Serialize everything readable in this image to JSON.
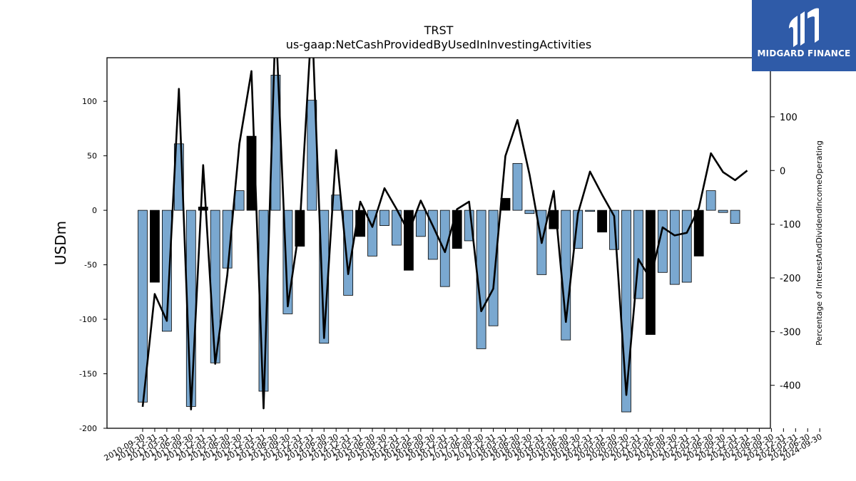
{
  "chart_data": {
    "type": "bar",
    "title": "TRST",
    "subtitle": "us-gaap:NetCashProvidedByUsedInInvestingActivities",
    "ylabel": "USDm",
    "ylabel_right": "Percentage of InterestAndDividendIncomeOperating",
    "ylim": [
      -200,
      140
    ],
    "ylim_right": [
      -480,
      210
    ],
    "yticks": [
      -200,
      -150,
      -100,
      -50,
      0,
      50,
      100
    ],
    "yticks_right": [
      -400,
      -300,
      -200,
      -100,
      0,
      100
    ],
    "categories": [
      "2010-09-30",
      "2010-12-31",
      "2011-03-31",
      "2011-06-30",
      "2011-09-30",
      "2011-12-31",
      "2012-03-31",
      "2012-06-30",
      "2012-09-30",
      "2012-12-31",
      "2013-03-31",
      "2013-06-30",
      "2013-09-30",
      "2013-12-31",
      "2014-03-31",
      "2014-06-30",
      "2014-09-30",
      "2014-12-31",
      "2015-03-31",
      "2015-06-30",
      "2015-09-30",
      "2015-12-31",
      "2016-03-31",
      "2016-06-30",
      "2016-09-30",
      "2016-12-31",
      "2017-03-31",
      "2017-06-30",
      "2017-09-30",
      "2017-12-31",
      "2018-03-31",
      "2018-06-30",
      "2018-09-30",
      "2018-12-31",
      "2019-03-31",
      "2019-06-30",
      "2019-09-30",
      "2019-12-31",
      "2020-03-31",
      "2020-06-30",
      "2020-09-30",
      "2020-12-31",
      "2021-03-31",
      "2021-06-30",
      "2021-09-30",
      "2021-12-31",
      "2022-03-31",
      "2022-06-30",
      "2022-09-30",
      "2022-12-31",
      "2023-03-31"
    ],
    "tick_labels": [
      "2010-09-30",
      "2010-12-31",
      "2011-03-31",
      "2011-06-30",
      "2011-09-30",
      "2011-12-31",
      "2012-03-31",
      "2012-06-30",
      "2012-09-30",
      "2012-12-31",
      "2013-03-31",
      "2013-06-30",
      "2013-09-30",
      "2013-12-31",
      "2014-03-31",
      "2014-06-30",
      "2014-09-30",
      "2014-12-31",
      "2015-03-31",
      "2015-06-30",
      "2015-09-30",
      "2015-12-31",
      "2016-03-31",
      "2016-06-30",
      "2016-09-30",
      "2016-12-31",
      "2017-03-31",
      "2017-06-30",
      "2017-09-30",
      "2017-12-31",
      "2018-03-31",
      "2018-06-30",
      "2018-09-30",
      "2018-12-31",
      "2019-03-31",
      "2019-06-30",
      "2019-09-30",
      "2019-12-31",
      "2020-03-31",
      "2020-06-30",
      "2020-09-30",
      "2020-12-31",
      "2021-03-31",
      "2021-06-30",
      "2021-09-30",
      "2021-12-31",
      "2022-03-31",
      "2022-06-30",
      "2022-09-30",
      "2022-12-31",
      "2023-03-31",
      "2023-06-30",
      "2023-09-30",
      "2023-12-31",
      "2024-03-31",
      "2024-06-30",
      "2024-09-30"
    ],
    "series": [
      {
        "axis": "left",
        "values": [
          -176,
          -66,
          -111,
          61,
          -180,
          3,
          -140,
          -53,
          18,
          68,
          -166,
          124,
          -95,
          -33,
          101,
          -122,
          14,
          -78,
          -24,
          -42,
          -14,
          -32,
          -55,
          -24,
          -45,
          -70,
          -35,
          -28,
          -127,
          -106,
          11,
          43,
          -3,
          -59,
          -17,
          -119,
          -35,
          -1,
          -20,
          -36,
          -185,
          -81,
          -114,
          -57,
          -68,
          -66,
          -42,
          18,
          -2,
          -12,
          0
        ],
        "highlight_indices": [
          1,
          5,
          9,
          13,
          18,
          22,
          26,
          30,
          34,
          38,
          42,
          46
        ]
      },
      {
        "type": "line",
        "axis": "right",
        "values": [
          -440,
          -230,
          -280,
          152,
          -445,
          10,
          -360,
          -195,
          50,
          185,
          -443,
          285,
          -253,
          -100,
          285,
          -312,
          38,
          -193,
          -58,
          -105,
          -33,
          -72,
          -115,
          -56,
          -103,
          -152,
          -72,
          -58,
          -262,
          -220,
          27,
          94,
          -8,
          -135,
          -38,
          -282,
          -80,
          -2,
          -45,
          -85,
          -418,
          -165,
          -202,
          -106,
          -121,
          -116,
          -70,
          32,
          -3,
          -18,
          0
        ]
      }
    ],
    "colors": {
      "bar": "#7aa8d0",
      "bar_highlight": "#000000",
      "line": "#000000",
      "axes": "#000000"
    }
  },
  "brand": {
    "name": "MIDGARD FINANCE",
    "bg": "#2f5ba8"
  }
}
